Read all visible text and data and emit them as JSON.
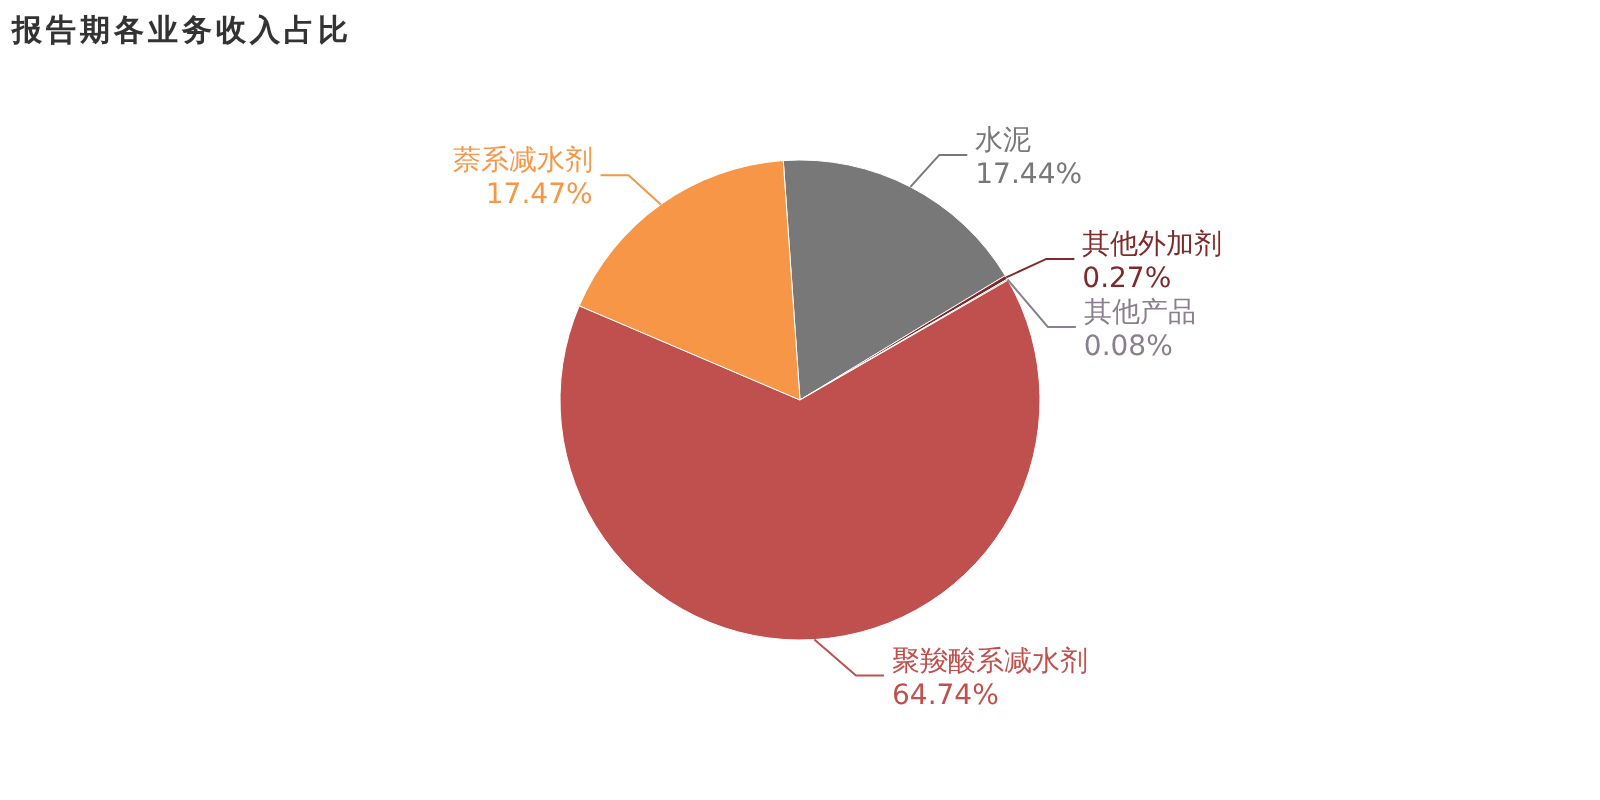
{
  "chart_data": {
    "type": "pie",
    "title": "报告期各业务收入占比",
    "categories": [
      "水泥",
      "其他外加剂",
      "其他产品",
      "聚羧酸系减水剂",
      "萘系减水剂"
    ],
    "values": [
      17.44,
      0.27,
      0.08,
      64.74,
      17.47
    ],
    "value_labels": [
      "17.44%",
      "0.27%",
      "0.08%",
      "64.74%",
      "17.47%"
    ],
    "colors": [
      "#787878",
      "#7f2a2a",
      "#8a7f8e",
      "#c0504d",
      "#f79646"
    ],
    "legend": false
  }
}
